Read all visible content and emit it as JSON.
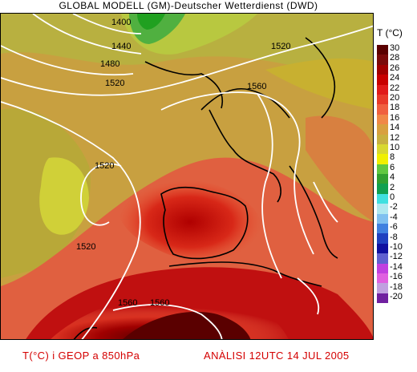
{
  "title": "GLOBAL MODELL (GM)-Deutscher Wetterdienst (DWD)",
  "legend": {
    "title": "T (°C)",
    "ticks": [
      "30",
      "28",
      "26",
      "24",
      "22",
      "20",
      "18",
      "16",
      "14",
      "12",
      "10",
      "8",
      "6",
      "4",
      "2",
      "0",
      "-2",
      "-4",
      "-6",
      "-8",
      "-10",
      "-12",
      "-14",
      "-16",
      "-18",
      "-20"
    ],
    "colors": [
      "#5a0000",
      "#7a0a0a",
      "#a00000",
      "#c80000",
      "#e01a1a",
      "#e83a2a",
      "#f06040",
      "#f08848",
      "#d8a040",
      "#c8b040",
      "#d8d830",
      "#f0f000",
      "#60c840",
      "#30a030",
      "#10a050",
      "#40e0e0",
      "#b0e8f0",
      "#80c0f0",
      "#4080e0",
      "#2040c0",
      "#1010a0",
      "#6060d0",
      "#c040e0",
      "#e060e0",
      "#c0a0e0",
      "#7020a0"
    ]
  },
  "contour_labels": {
    "values": [
      "1400",
      "1440",
      "1480",
      "1520",
      "1520",
      "1520",
      "1520",
      "1560",
      "1560",
      "1560"
    ]
  },
  "footer": {
    "left": "T(°C) i GEOP a 850hPa",
    "right": "ANÀLISI 12UTC 14 JUL 2005"
  }
}
